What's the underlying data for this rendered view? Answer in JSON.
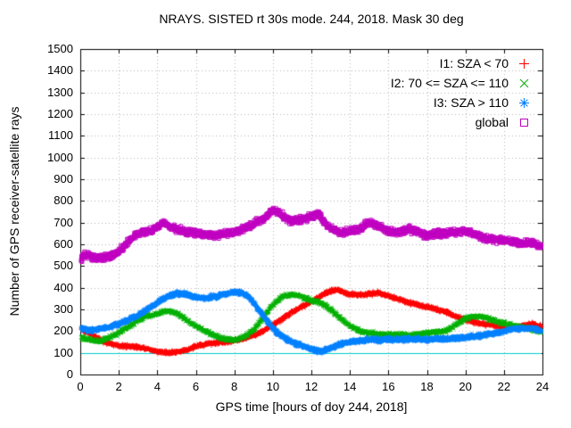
{
  "chart_data": {
    "type": "scatter",
    "title": "NRAYS. SISTED rt 30s mode. 244, 2018. Mask 30 deg",
    "xlabel": "GPS time [hours of doy 244, 2018]",
    "ylabel": "Number of GPS receiver-satellite rays",
    "xlim": [
      0,
      24
    ],
    "ylim": [
      0,
      1500
    ],
    "xtick_step": 2,
    "ytick_step": 100,
    "grid": true,
    "legend_position": "top-right",
    "grid_color": "#b4b4b4",
    "border_color": "#000000",
    "hline": {
      "y": 100,
      "color": "#00cdcd"
    },
    "sampling_hours": 0.012,
    "series": [
      {
        "name": "I1: SZA < 70",
        "marker": "plus",
        "color": "#ff0000",
        "jitter": 12,
        "trend": [
          [
            0,
            210
          ],
          [
            0.5,
            190
          ],
          [
            1,
            160
          ],
          [
            1.5,
            145
          ],
          [
            2,
            132
          ],
          [
            2.5,
            130
          ],
          [
            3,
            126
          ],
          [
            3.5,
            118
          ],
          [
            4,
            106
          ],
          [
            4.5,
            100
          ],
          [
            5,
            104
          ],
          [
            5.5,
            112
          ],
          [
            6,
            130
          ],
          [
            6.5,
            140
          ],
          [
            7,
            146
          ],
          [
            7.5,
            150
          ],
          [
            8,
            156
          ],
          [
            8.5,
            166
          ],
          [
            9,
            180
          ],
          [
            9.5,
            200
          ],
          [
            10,
            228
          ],
          [
            10.5,
            258
          ],
          [
            11,
            288
          ],
          [
            11.5,
            312
          ],
          [
            12,
            335
          ],
          [
            12.5,
            362
          ],
          [
            13,
            385
          ],
          [
            13.3,
            390
          ],
          [
            13.7,
            378
          ],
          [
            14,
            370
          ],
          [
            14.5,
            365
          ],
          [
            15,
            372
          ],
          [
            15.5,
            375
          ],
          [
            16,
            362
          ],
          [
            16.5,
            348
          ],
          [
            17,
            332
          ],
          [
            17.5,
            322
          ],
          [
            18,
            312
          ],
          [
            18.5,
            300
          ],
          [
            19,
            288
          ],
          [
            19.5,
            268
          ],
          [
            20,
            252
          ],
          [
            20.5,
            240
          ],
          [
            21,
            232
          ],
          [
            21.5,
            226
          ],
          [
            22,
            220
          ],
          [
            22.5,
            216
          ],
          [
            23,
            226
          ],
          [
            23.5,
            232
          ],
          [
            24,
            218
          ]
        ]
      },
      {
        "name": "I2: 70 <= SZA <= 110",
        "marker": "cross",
        "color": "#00b000",
        "jitter": 14,
        "trend": [
          [
            0,
            172
          ],
          [
            0.5,
            160
          ],
          [
            1,
            152
          ],
          [
            1.5,
            170
          ],
          [
            2,
            192
          ],
          [
            2.5,
            220
          ],
          [
            3,
            250
          ],
          [
            3.5,
            270
          ],
          [
            4,
            282
          ],
          [
            4.5,
            295
          ],
          [
            5,
            282
          ],
          [
            5.5,
            252
          ],
          [
            6,
            222
          ],
          [
            6.5,
            200
          ],
          [
            7,
            178
          ],
          [
            7.5,
            166
          ],
          [
            8,
            160
          ],
          [
            8.5,
            172
          ],
          [
            9,
            205
          ],
          [
            9.5,
            262
          ],
          [
            10,
            322
          ],
          [
            10.5,
            358
          ],
          [
            11,
            370
          ],
          [
            11.3,
            365
          ],
          [
            11.7,
            352
          ],
          [
            12,
            340
          ],
          [
            12.5,
            330
          ],
          [
            13,
            300
          ],
          [
            13.5,
            262
          ],
          [
            14,
            222
          ],
          [
            14.5,
            200
          ],
          [
            15,
            190
          ],
          [
            15.5,
            186
          ],
          [
            16,
            182
          ],
          [
            16.5,
            186
          ],
          [
            17,
            182
          ],
          [
            17.5,
            186
          ],
          [
            18,
            190
          ],
          [
            18.5,
            196
          ],
          [
            19,
            202
          ],
          [
            19.5,
            230
          ],
          [
            20,
            258
          ],
          [
            20.5,
            270
          ],
          [
            21,
            264
          ],
          [
            21.5,
            250
          ],
          [
            22,
            236
          ],
          [
            22.5,
            226
          ],
          [
            23,
            216
          ],
          [
            23.5,
            206
          ],
          [
            24,
            196
          ]
        ]
      },
      {
        "name": "I3: SZA > 110",
        "marker": "asterisk",
        "color": "#0080ff",
        "jitter": 14,
        "trend": [
          [
            0,
            215
          ],
          [
            0.5,
            202
          ],
          [
            1,
            210
          ],
          [
            1.5,
            220
          ],
          [
            2,
            232
          ],
          [
            2.5,
            250
          ],
          [
            3,
            272
          ],
          [
            3.5,
            300
          ],
          [
            4,
            330
          ],
          [
            4.5,
            358
          ],
          [
            5,
            374
          ],
          [
            5.5,
            368
          ],
          [
            6,
            356
          ],
          [
            6.5,
            350
          ],
          [
            7,
            360
          ],
          [
            7.5,
            370
          ],
          [
            8,
            380
          ],
          [
            8.3,
            378
          ],
          [
            8.7,
            362
          ],
          [
            9,
            330
          ],
          [
            9.5,
            272
          ],
          [
            10,
            212
          ],
          [
            10.5,
            172
          ],
          [
            11,
            150
          ],
          [
            11.5,
            132
          ],
          [
            12,
            116
          ],
          [
            12.5,
            106
          ],
          [
            13,
            120
          ],
          [
            13.5,
            140
          ],
          [
            14,
            150
          ],
          [
            14.5,
            156
          ],
          [
            15,
            160
          ],
          [
            15.5,
            160
          ],
          [
            16,
            164
          ],
          [
            16.5,
            160
          ],
          [
            17,
            162
          ],
          [
            17.5,
            164
          ],
          [
            18,
            160
          ],
          [
            18.5,
            164
          ],
          [
            19,
            162
          ],
          [
            19.5,
            166
          ],
          [
            20,
            170
          ],
          [
            20.5,
            176
          ],
          [
            21,
            182
          ],
          [
            21.5,
            190
          ],
          [
            22,
            200
          ],
          [
            22.5,
            210
          ],
          [
            23,
            214
          ],
          [
            23.5,
            214
          ],
          [
            24,
            196
          ]
        ]
      },
      {
        "name": "global",
        "marker": "square",
        "color": "#c000c0",
        "jitter": 22,
        "trend": [
          [
            0,
            520
          ],
          [
            0.2,
            555
          ],
          [
            0.5,
            545
          ],
          [
            1,
            535
          ],
          [
            1.5,
            545
          ],
          [
            2,
            565
          ],
          [
            2.5,
            615
          ],
          [
            3,
            650
          ],
          [
            3.5,
            655
          ],
          [
            4,
            680
          ],
          [
            4.3,
            700
          ],
          [
            5,
            670
          ],
          [
            5.5,
            655
          ],
          [
            6,
            655
          ],
          [
            6.5,
            645
          ],
          [
            7,
            640
          ],
          [
            7.5,
            650
          ],
          [
            8,
            655
          ],
          [
            8.5,
            675
          ],
          [
            9,
            695
          ],
          [
            9.5,
            715
          ],
          [
            10,
            755
          ],
          [
            10.3,
            745
          ],
          [
            10.7,
            720
          ],
          [
            11,
            705
          ],
          [
            11.5,
            715
          ],
          [
            12,
            730
          ],
          [
            12.4,
            740
          ],
          [
            12.7,
            700
          ],
          [
            13,
            675
          ],
          [
            13.5,
            655
          ],
          [
            14,
            660
          ],
          [
            14.5,
            670
          ],
          [
            15,
            700
          ],
          [
            15.3,
            695
          ],
          [
            16,
            660
          ],
          [
            16.5,
            655
          ],
          [
            17,
            670
          ],
          [
            17.5,
            660
          ],
          [
            18,
            640
          ],
          [
            18.5,
            650
          ],
          [
            19,
            650
          ],
          [
            19.5,
            655
          ],
          [
            20,
            660
          ],
          [
            20.5,
            645
          ],
          [
            21,
            630
          ],
          [
            21.5,
            620
          ],
          [
            22,
            620
          ],
          [
            22.5,
            610
          ],
          [
            23,
            600
          ],
          [
            23.5,
            610
          ],
          [
            24,
            585
          ]
        ]
      }
    ]
  }
}
